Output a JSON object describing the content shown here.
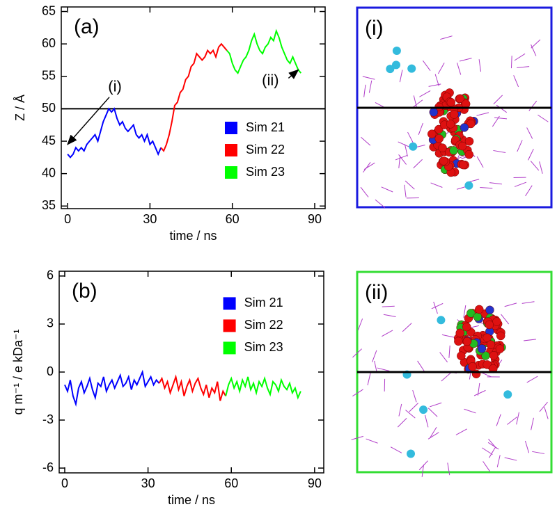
{
  "chart_data": [
    {
      "type": "line",
      "panel_label": "(a)",
      "x_label": "time / ns",
      "y_label": "Z / Å",
      "xlim": [
        -2.3,
        93.8
      ],
      "ylim": [
        34.6,
        65.7
      ],
      "xticks": [
        0,
        30,
        60,
        90
      ],
      "yticks": [
        35,
        40,
        45,
        50,
        55,
        60,
        65
      ],
      "hline": 50,
      "legend": "center right",
      "annotations": [
        {
          "text": "(i)",
          "x": 0,
          "y": 44.5
        },
        {
          "text": "(ii)",
          "x": 84,
          "y": 56
        }
      ],
      "series": [
        {
          "name": "Sim 21",
          "color": "#0000ff",
          "x": [
            0,
            1,
            2,
            3,
            4,
            5,
            6,
            7,
            8,
            9,
            10,
            11,
            12,
            13,
            14,
            15,
            16,
            17,
            18,
            19,
            20,
            21,
            22,
            23,
            24,
            25,
            26,
            27,
            28,
            29,
            30,
            31,
            32,
            33,
            34
          ],
          "values": [
            43,
            42.5,
            43,
            44,
            43.5,
            44,
            43.5,
            44.5,
            45,
            45.5,
            46,
            45,
            46.5,
            48,
            49,
            50,
            49.5,
            50,
            48.5,
            47.5,
            48,
            47,
            46.5,
            47,
            47.5,
            46,
            45.5,
            46,
            45,
            46,
            44.5,
            45,
            44,
            43,
            44
          ]
        },
        {
          "name": "Sim 22",
          "color": "#ff0000",
          "x": [
            34,
            35,
            36,
            37,
            38,
            39,
            40,
            41,
            42,
            43,
            44,
            45,
            46,
            47,
            48,
            49,
            50,
            51,
            52,
            53,
            54,
            55,
            56,
            57,
            58
          ],
          "values": [
            44,
            43.5,
            44.5,
            46,
            48,
            50.5,
            51,
            52.5,
            53,
            54.5,
            55,
            56.5,
            57,
            58.5,
            58,
            57.5,
            58,
            59,
            58.5,
            59,
            58,
            59.5,
            60,
            59.5,
            59
          ]
        },
        {
          "name": "Sim 23",
          "color": "#00ff00",
          "x": [
            58,
            59,
            60,
            61,
            62,
            63,
            64,
            65,
            66,
            67,
            68,
            69,
            70,
            71,
            72,
            73,
            74,
            75,
            76,
            77,
            78,
            79,
            80,
            81,
            82,
            83,
            84,
            85
          ],
          "values": [
            59,
            58.5,
            57,
            56,
            55.5,
            56.5,
            57.5,
            58,
            59,
            60.5,
            61.5,
            60,
            59,
            58.5,
            59.5,
            60,
            61,
            60.5,
            62,
            61,
            59.5,
            58.5,
            57.5,
            57,
            58,
            57,
            56,
            55.5
          ]
        }
      ]
    },
    {
      "type": "line",
      "panel_label": "(b)",
      "x_label": "time / ns",
      "y_label": "q m⁻¹ / e kDa⁻¹",
      "xlim": [
        -2,
        93.3
      ],
      "ylim": [
        -6.3,
        6.3
      ],
      "xticks": [
        0,
        30,
        60,
        90
      ],
      "yticks": [
        -6,
        -3,
        0,
        3,
        6
      ],
      "legend": "upper right",
      "series": [
        {
          "name": "Sim 21",
          "color": "#0000ff",
          "x": [
            0,
            1,
            2,
            3,
            4,
            5,
            6,
            7,
            8,
            9,
            10,
            11,
            12,
            13,
            14,
            15,
            16,
            17,
            18,
            19,
            20,
            21,
            22,
            23,
            24,
            25,
            26,
            27,
            28,
            29,
            30,
            31,
            32,
            33,
            34
          ],
          "values": [
            -0.8,
            -1.2,
            -0.5,
            -1.5,
            -2,
            -1,
            -0.6,
            -1.3,
            -0.9,
            -0.4,
            -1.1,
            -1.6,
            -0.7,
            -0.9,
            -0.3,
            -1.2,
            -0.8,
            -0.5,
            -1,
            -0.6,
            -0.2,
            -0.9,
            -0.7,
            -0.3,
            -1.1,
            -0.5,
            -0.8,
            -0.4,
            0,
            -0.9,
            -0.6,
            -0.3,
            -0.8,
            -0.5,
            -0.7
          ]
        },
        {
          "name": "Sim 22",
          "color": "#ff0000",
          "x": [
            34,
            35,
            36,
            37,
            38,
            39,
            40,
            41,
            42,
            43,
            44,
            45,
            46,
            47,
            48,
            49,
            50,
            51,
            52,
            53,
            54,
            55,
            56,
            57,
            58
          ],
          "values": [
            -0.7,
            -0.4,
            -1,
            -0.6,
            -1.3,
            -0.8,
            -0.3,
            -1.1,
            -0.6,
            -1.5,
            -0.9,
            -0.5,
            -1.2,
            -0.7,
            -0.4,
            -1,
            -1.4,
            -0.8,
            -1.6,
            -1,
            -1.3,
            -0.6,
            -1.8,
            -1.2,
            -1.5
          ]
        },
        {
          "name": "Sim 23",
          "color": "#00ff00",
          "x": [
            58,
            59,
            60,
            61,
            62,
            63,
            64,
            65,
            66,
            67,
            68,
            69,
            70,
            71,
            72,
            73,
            74,
            75,
            76,
            77,
            78,
            79,
            80,
            81,
            82,
            83,
            84,
            85
          ],
          "values": [
            -1.5,
            -0.8,
            -0.4,
            -1,
            -0.6,
            -1.2,
            -0.5,
            -0.9,
            -0.3,
            -1.1,
            -0.7,
            -1.3,
            -0.6,
            -0.9,
            -0.4,
            -1,
            -1.4,
            -0.6,
            -0.8,
            -1.2,
            -0.5,
            -0.9,
            -1.1,
            -0.7,
            -1.3,
            -1,
            -1.6,
            -1.2
          ]
        }
      ]
    }
  ],
  "panels": [
    {
      "label": "(i)"
    },
    {
      "label": "(ii)"
    }
  ]
}
